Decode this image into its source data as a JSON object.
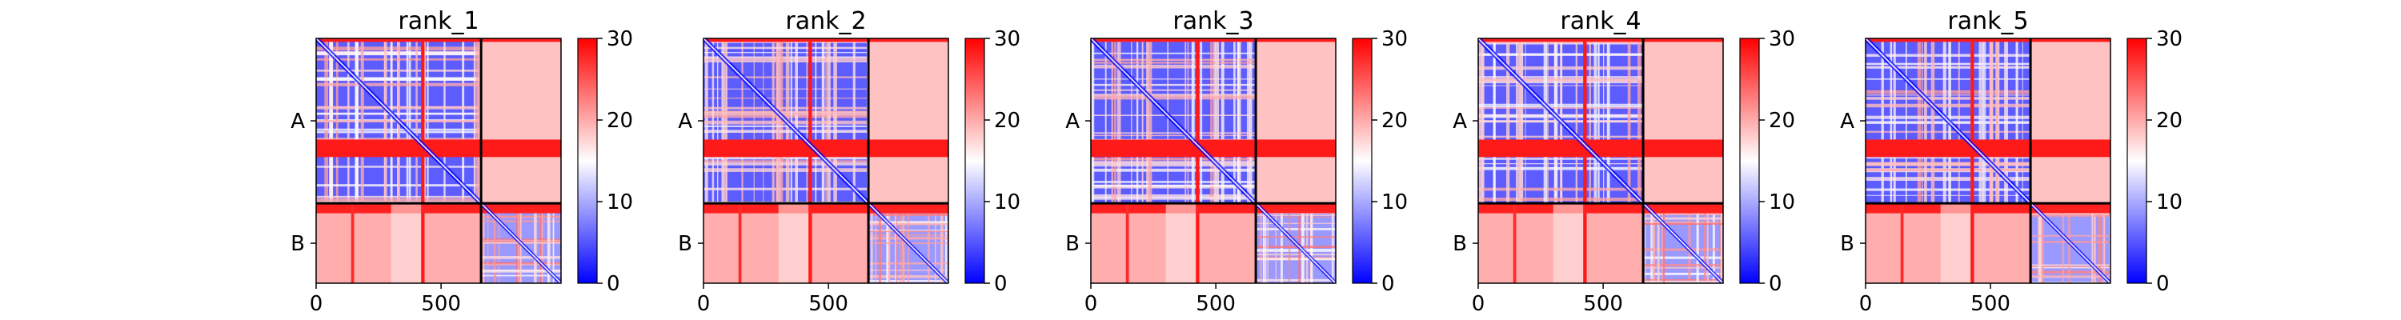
{
  "chart_data": [
    {
      "type": "heatmap",
      "title": "rank_1",
      "x_ticks": [
        "0",
        "500"
      ],
      "y_ticks": [
        "A",
        "B"
      ],
      "colorbar": {
        "ticks": [
          "0",
          "10",
          "20",
          "30"
        ],
        "range": [
          0,
          30
        ],
        "colors": [
          "#0000ff",
          "#ffffff",
          "#ff0000"
        ]
      },
      "chain_boundary": 660,
      "x_range": [
        0,
        980
      ]
    },
    {
      "type": "heatmap",
      "title": "rank_2",
      "x_ticks": [
        "0",
        "500"
      ],
      "y_ticks": [
        "A",
        "B"
      ],
      "colorbar": {
        "ticks": [
          "0",
          "10",
          "20",
          "30"
        ],
        "range": [
          0,
          30
        ],
        "colors": [
          "#0000ff",
          "#ffffff",
          "#ff0000"
        ]
      },
      "chain_boundary": 660,
      "x_range": [
        0,
        980
      ]
    },
    {
      "type": "heatmap",
      "title": "rank_3",
      "x_ticks": [
        "0",
        "500"
      ],
      "y_ticks": [
        "A",
        "B"
      ],
      "colorbar": {
        "ticks": [
          "0",
          "10",
          "20",
          "30"
        ],
        "range": [
          0,
          30
        ],
        "colors": [
          "#0000ff",
          "#ffffff",
          "#ff0000"
        ]
      },
      "chain_boundary": 660,
      "x_range": [
        0,
        980
      ]
    },
    {
      "type": "heatmap",
      "title": "rank_4",
      "x_ticks": [
        "0",
        "500"
      ],
      "y_ticks": [
        "A",
        "B"
      ],
      "colorbar": {
        "ticks": [
          "0",
          "10",
          "20",
          "30"
        ],
        "range": [
          0,
          30
        ],
        "colors": [
          "#0000ff",
          "#ffffff",
          "#ff0000"
        ]
      },
      "chain_boundary": 660,
      "x_range": [
        0,
        980
      ]
    },
    {
      "type": "heatmap",
      "title": "rank_5",
      "x_ticks": [
        "0",
        "500"
      ],
      "y_ticks": [
        "A",
        "B"
      ],
      "colorbar": {
        "ticks": [
          "0",
          "10",
          "20",
          "30"
        ],
        "range": [
          0,
          30
        ],
        "colors": [
          "#0000ff",
          "#ffffff",
          "#ff0000"
        ]
      },
      "chain_boundary": 660,
      "x_range": [
        0,
        980
      ]
    }
  ]
}
